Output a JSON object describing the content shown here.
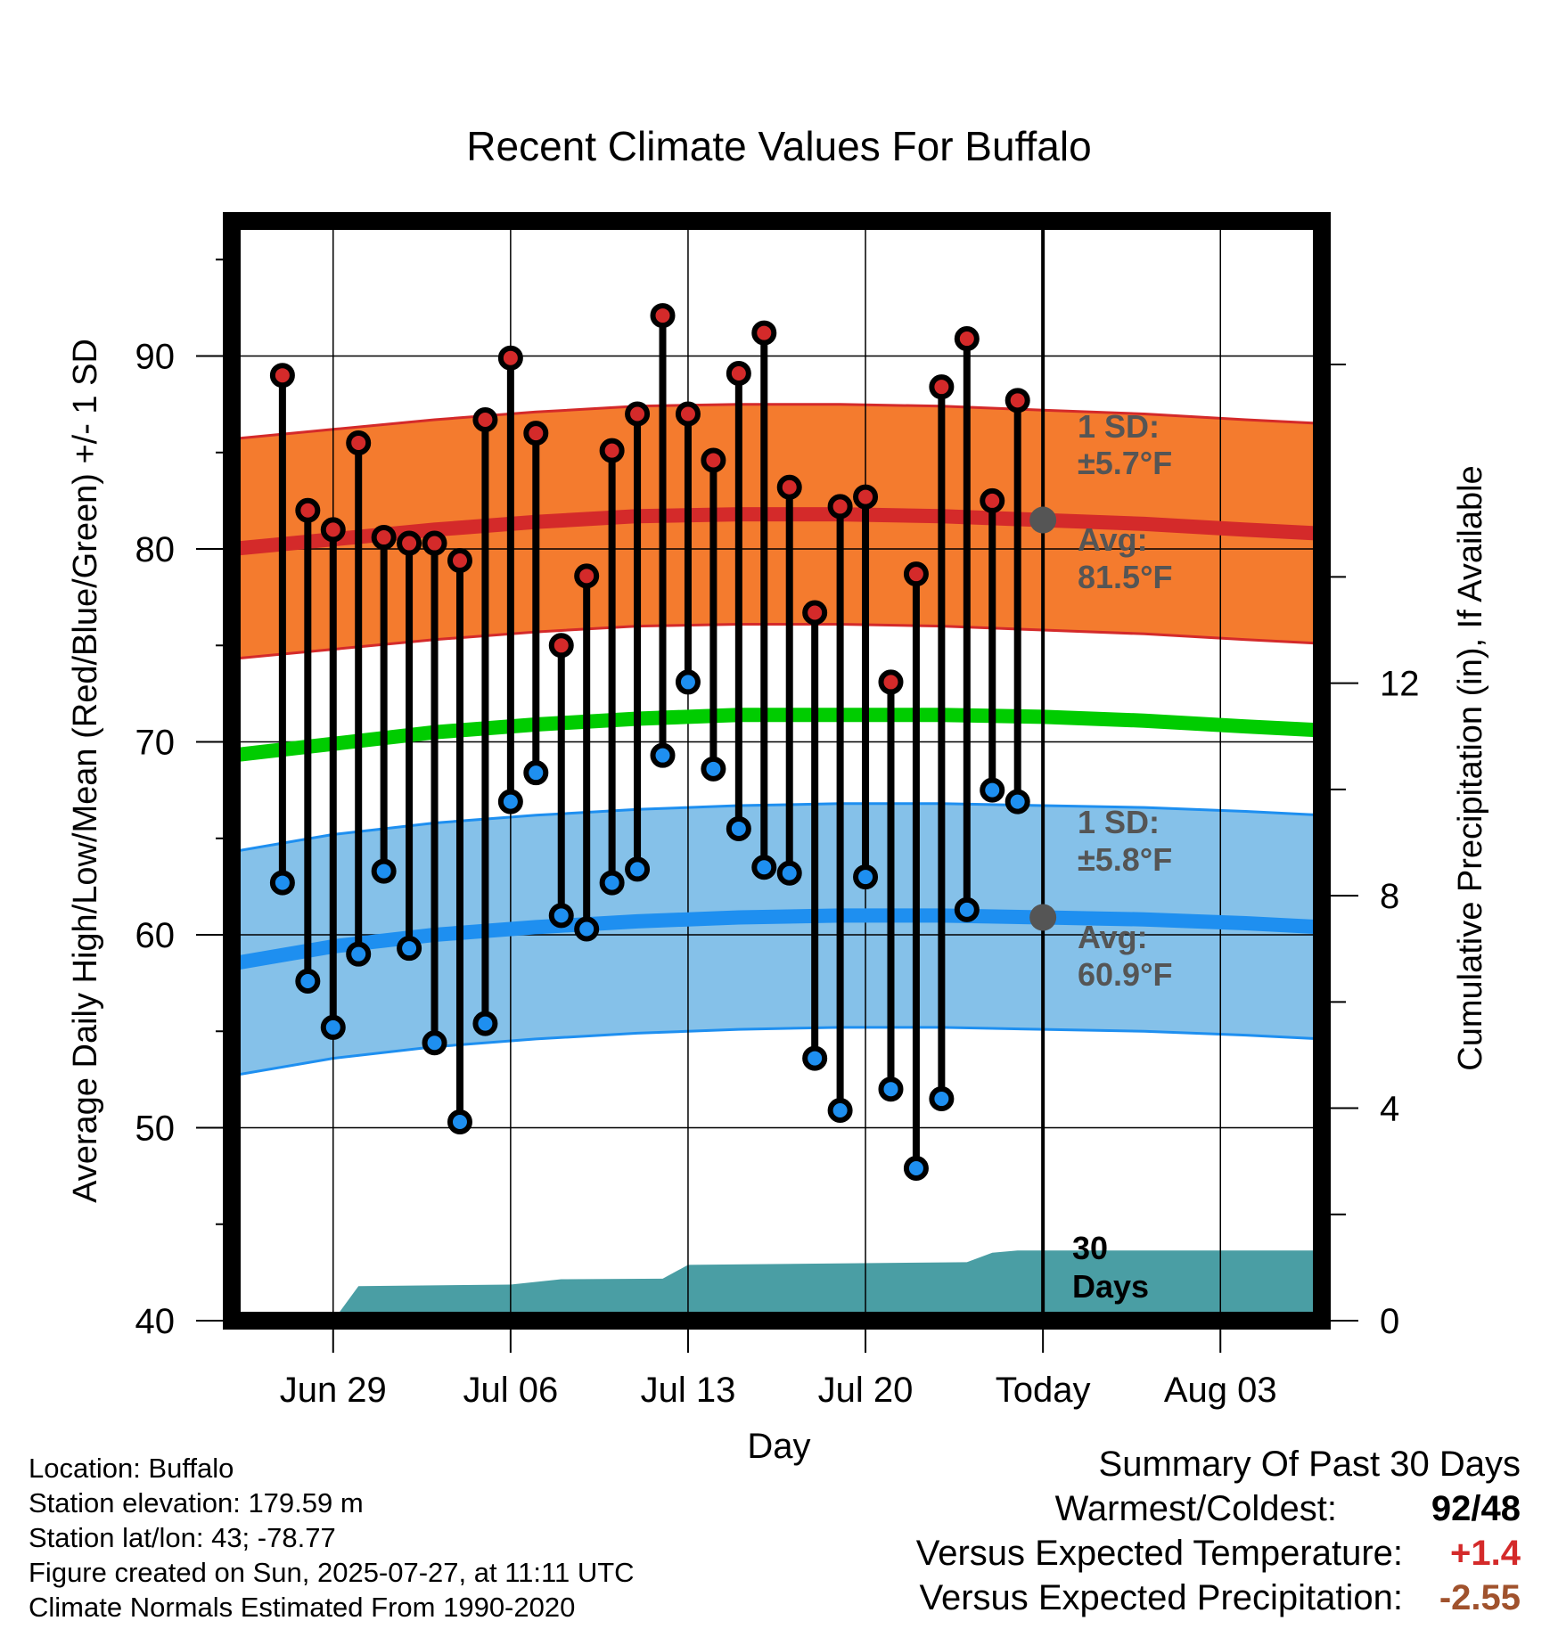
{
  "chart_data": {
    "type": "line",
    "title": "Recent Climate Values For Buffalo",
    "xlabel": "Day",
    "ylabel": "Average Daily High/Low/Mean (Red/Blue/Green) +/- 1 SD",
    "y2label": "Cumulative Precipitation (in), If Available",
    "ylim": [
      40,
      97
    ],
    "y2lim": [
      0,
      20.7
    ],
    "yticks": [
      40,
      50,
      60,
      70,
      80,
      90
    ],
    "y2ticks": [
      0,
      4,
      8,
      12
    ],
    "xlim": [
      "2025-06-25",
      "2025-08-07"
    ],
    "xtick_dates": [
      "2025-06-29",
      "2025-07-06",
      "2025-07-13",
      "2025-07-20",
      "2025-07-27",
      "2025-08-03"
    ],
    "xtick_labels": [
      "Jun 29",
      "Jul 06",
      "Jul 13",
      "Jul 20",
      "Today",
      "Aug 03"
    ],
    "today": "2025-07-27",
    "grid": true,
    "colors": {
      "high_band": "#f47b2e",
      "high_band_edge": "#d42a2a",
      "high_mean": "#d42a2a",
      "low_band": "#85c1e9",
      "low_band_edge": "#1e8ff0",
      "low_mean": "#1e8ff0",
      "mean_line": "#00cc00",
      "precip": "#4a9ea4",
      "high_marker": "#d42a2a",
      "low_marker": "#1e8ff0",
      "annotation": "#555555",
      "pos_value": "#d42a2a",
      "neg_value": "#a0522d"
    },
    "days": [
      "2025-06-27",
      "2025-06-28",
      "2025-06-29",
      "2025-06-30",
      "2025-07-01",
      "2025-07-02",
      "2025-07-03",
      "2025-07-04",
      "2025-07-05",
      "2025-07-06",
      "2025-07-07",
      "2025-07-08",
      "2025-07-09",
      "2025-07-10",
      "2025-07-11",
      "2025-07-12",
      "2025-07-13",
      "2025-07-14",
      "2025-07-15",
      "2025-07-16",
      "2025-07-17",
      "2025-07-18",
      "2025-07-19",
      "2025-07-20",
      "2025-07-21",
      "2025-07-22",
      "2025-07-23",
      "2025-07-24",
      "2025-07-25",
      "2025-07-26"
    ],
    "daily_high": [
      89,
      82,
      81,
      85.5,
      80.6,
      80.3,
      80.3,
      79.4,
      86.7,
      89.9,
      86,
      75,
      78.6,
      85.1,
      87,
      92.1,
      87,
      84.6,
      89.1,
      91.2,
      83.2,
      76.7,
      82.2,
      82.7,
      73.1,
      78.7,
      88.4,
      90.9,
      82.5,
      87.7
    ],
    "daily_low": [
      62.7,
      57.6,
      55.2,
      59,
      63.3,
      59.3,
      54.4,
      50.3,
      55.4,
      66.9,
      68.4,
      61,
      60.3,
      62.7,
      63.4,
      69.3,
      73.1,
      68.6,
      65.5,
      63.5,
      63.2,
      53.6,
      50.9,
      63,
      52,
      47.9,
      51.5,
      61.3,
      67.5,
      66.9
    ],
    "normals_x": [
      "2025-06-25",
      "2025-06-29",
      "2025-07-03",
      "2025-07-07",
      "2025-07-11",
      "2025-07-15",
      "2025-07-19",
      "2025-07-23",
      "2025-07-27",
      "2025-07-31",
      "2025-08-04",
      "2025-08-07"
    ],
    "normal_high": [
      80.0,
      80.5,
      81.0,
      81.4,
      81.7,
      81.8,
      81.8,
      81.7,
      81.5,
      81.3,
      81.0,
      80.8
    ],
    "normal_low": [
      58.5,
      59.4,
      60.0,
      60.4,
      60.7,
      60.9,
      61.0,
      61.0,
      60.9,
      60.8,
      60.6,
      60.4
    ],
    "normal_mean": [
      69.3,
      69.9,
      70.5,
      70.9,
      71.2,
      71.4,
      71.4,
      71.4,
      71.3,
      71.1,
      70.8,
      70.6
    ],
    "high_sd": 5.7,
    "low_sd": 5.8,
    "precip_x": [
      "2025-06-29",
      "2025-06-30",
      "2025-07-06",
      "2025-07-08",
      "2025-07-12",
      "2025-07-13",
      "2025-07-24",
      "2025-07-25",
      "2025-07-26",
      "2025-08-07"
    ],
    "precip_cum": [
      0.0,
      0.65,
      0.68,
      0.78,
      0.79,
      1.05,
      1.1,
      1.28,
      1.32,
      1.32
    ],
    "high_note_line1": "1 SD:",
    "high_note_line2": "±5.7°F",
    "high_avg_line1": "Avg:",
    "high_avg_line2": "81.5°F",
    "low_note_line1": "1 SD:",
    "low_note_line2": "±5.8°F",
    "low_avg_line1": "Avg:",
    "low_avg_line2": "60.9°F",
    "days_note_line1": "30",
    "days_note_line2": "Days"
  },
  "info": {
    "location": "Location: Buffalo",
    "elevation": "Station elevation: 179.59 m",
    "latlon": "Station lat/lon: 43; -78.77",
    "created": "Figure created on Sun, 2025-07-27, at 11:11 UTC",
    "normals": "Climate Normals Estimated From 1990-2020"
  },
  "summary": {
    "title": "Summary Of Past 30 Days",
    "warmest_label": "Warmest/Coldest:",
    "warmest_value": "92/48",
    "temp_label": "Versus Expected Temperature:",
    "temp_value": "+1.4",
    "precip_label": "Versus Expected Precipitation:",
    "precip_value": "-2.55"
  }
}
